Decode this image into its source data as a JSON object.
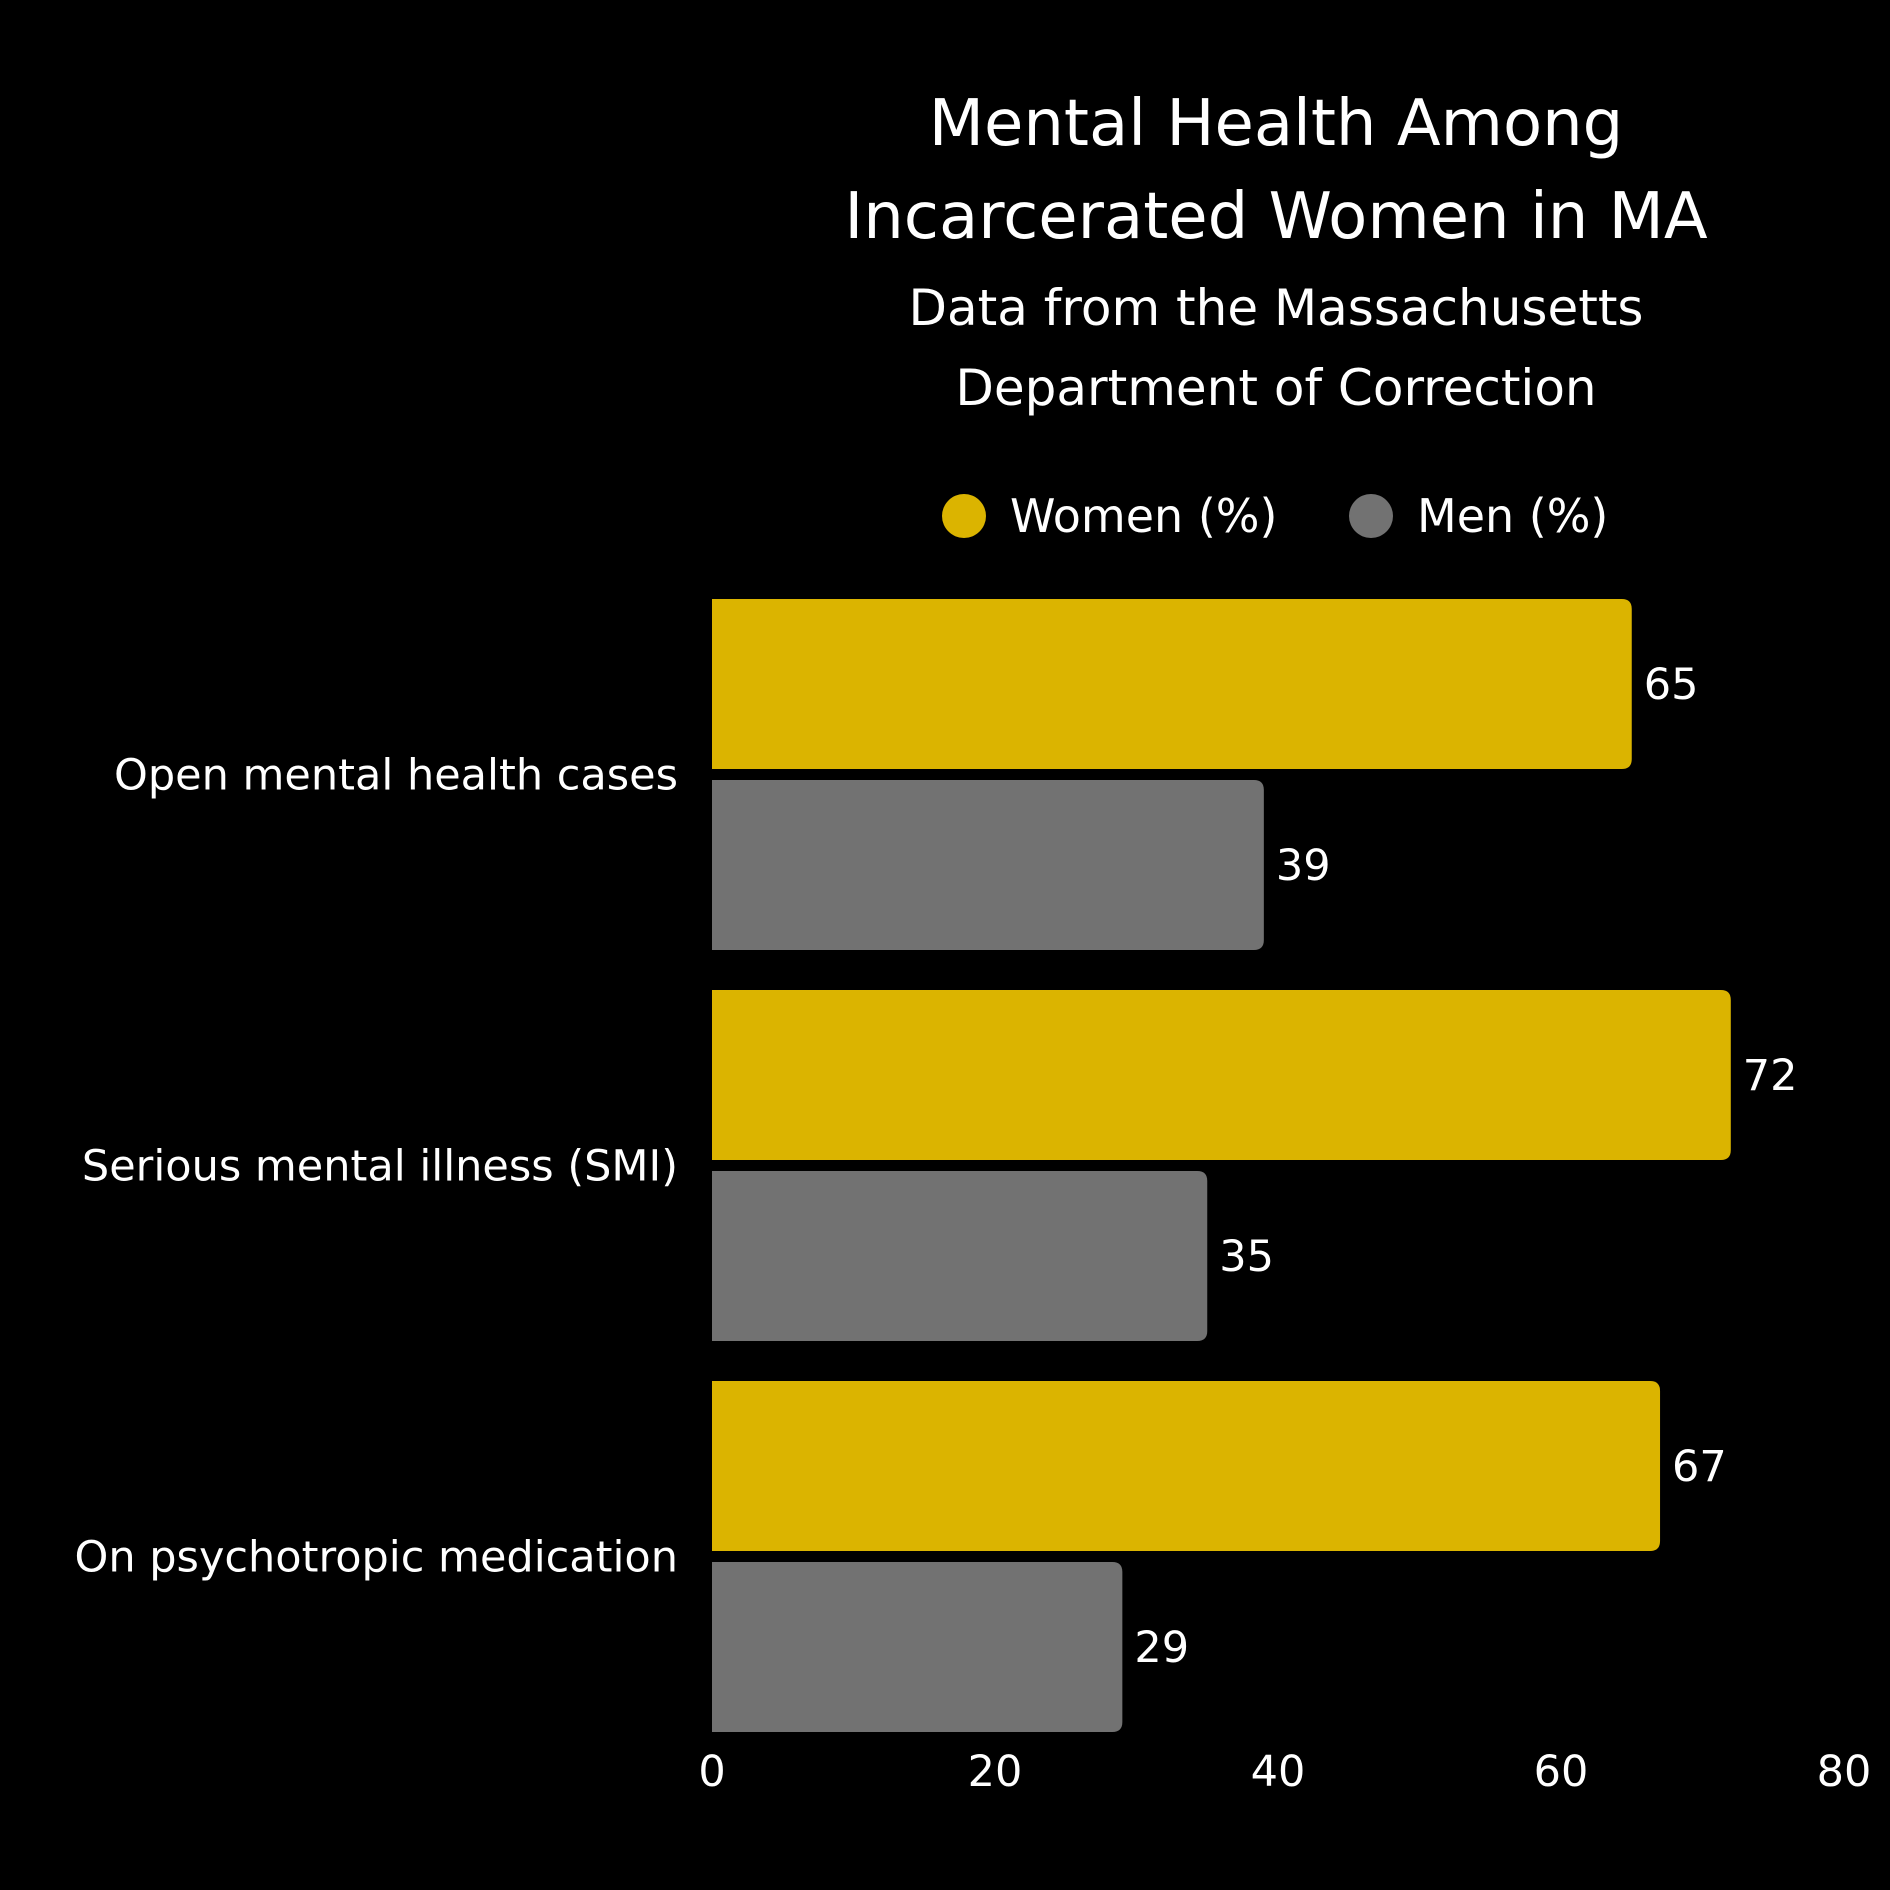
{
  "chart_data": {
    "type": "bar",
    "orientation": "horizontal",
    "title": [
      "Mental Health Among",
      "Incarcerated Women in MA"
    ],
    "subtitle": [
      "Data from the Massachusetts",
      "Department of Correction"
    ],
    "categories": [
      "Open mental health cases",
      "Serious mental illness (SMI)",
      "On psychotropic medication"
    ],
    "series": [
      {
        "name": "Women (%)",
        "color": "#DBB400",
        "values": [
          65,
          72,
          67
        ]
      },
      {
        "name": "Men (%)",
        "color": "#727272",
        "values": [
          39,
          35,
          29
        ]
      }
    ],
    "xlim": [
      0,
      80
    ],
    "xticks": [
      0,
      20,
      40,
      60,
      80
    ],
    "grid": false,
    "legend_position": "top",
    "data_labels": true,
    "background": "#000000"
  }
}
